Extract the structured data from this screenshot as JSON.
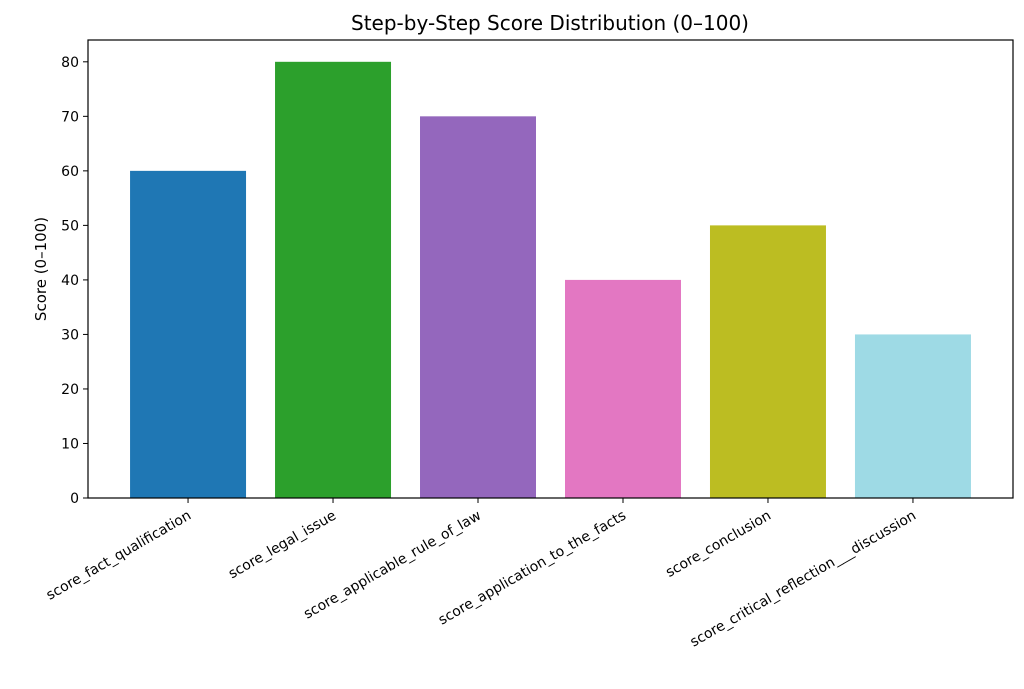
{
  "chart_data": {
    "type": "bar",
    "title": "Step-by-Step Score Distribution (0–100)",
    "xlabel": "",
    "ylabel": "Score (0–100)",
    "ylim": [
      0,
      84
    ],
    "yticks": [
      0,
      10,
      20,
      30,
      40,
      50,
      60,
      70,
      80
    ],
    "grid": false,
    "categories": [
      "score_fact_qualification",
      "score_legal_issue",
      "score_applicable_rule_of_law",
      "score_application_to_the_facts",
      "score_conclusion",
      "score_critical_reflection___discussion"
    ],
    "values": [
      60,
      80,
      70,
      40,
      50,
      30
    ],
    "colors": [
      "#1f77b4",
      "#2ca02c",
      "#9467bd",
      "#e377c2",
      "#bcbd22",
      "#9edae5"
    ]
  }
}
